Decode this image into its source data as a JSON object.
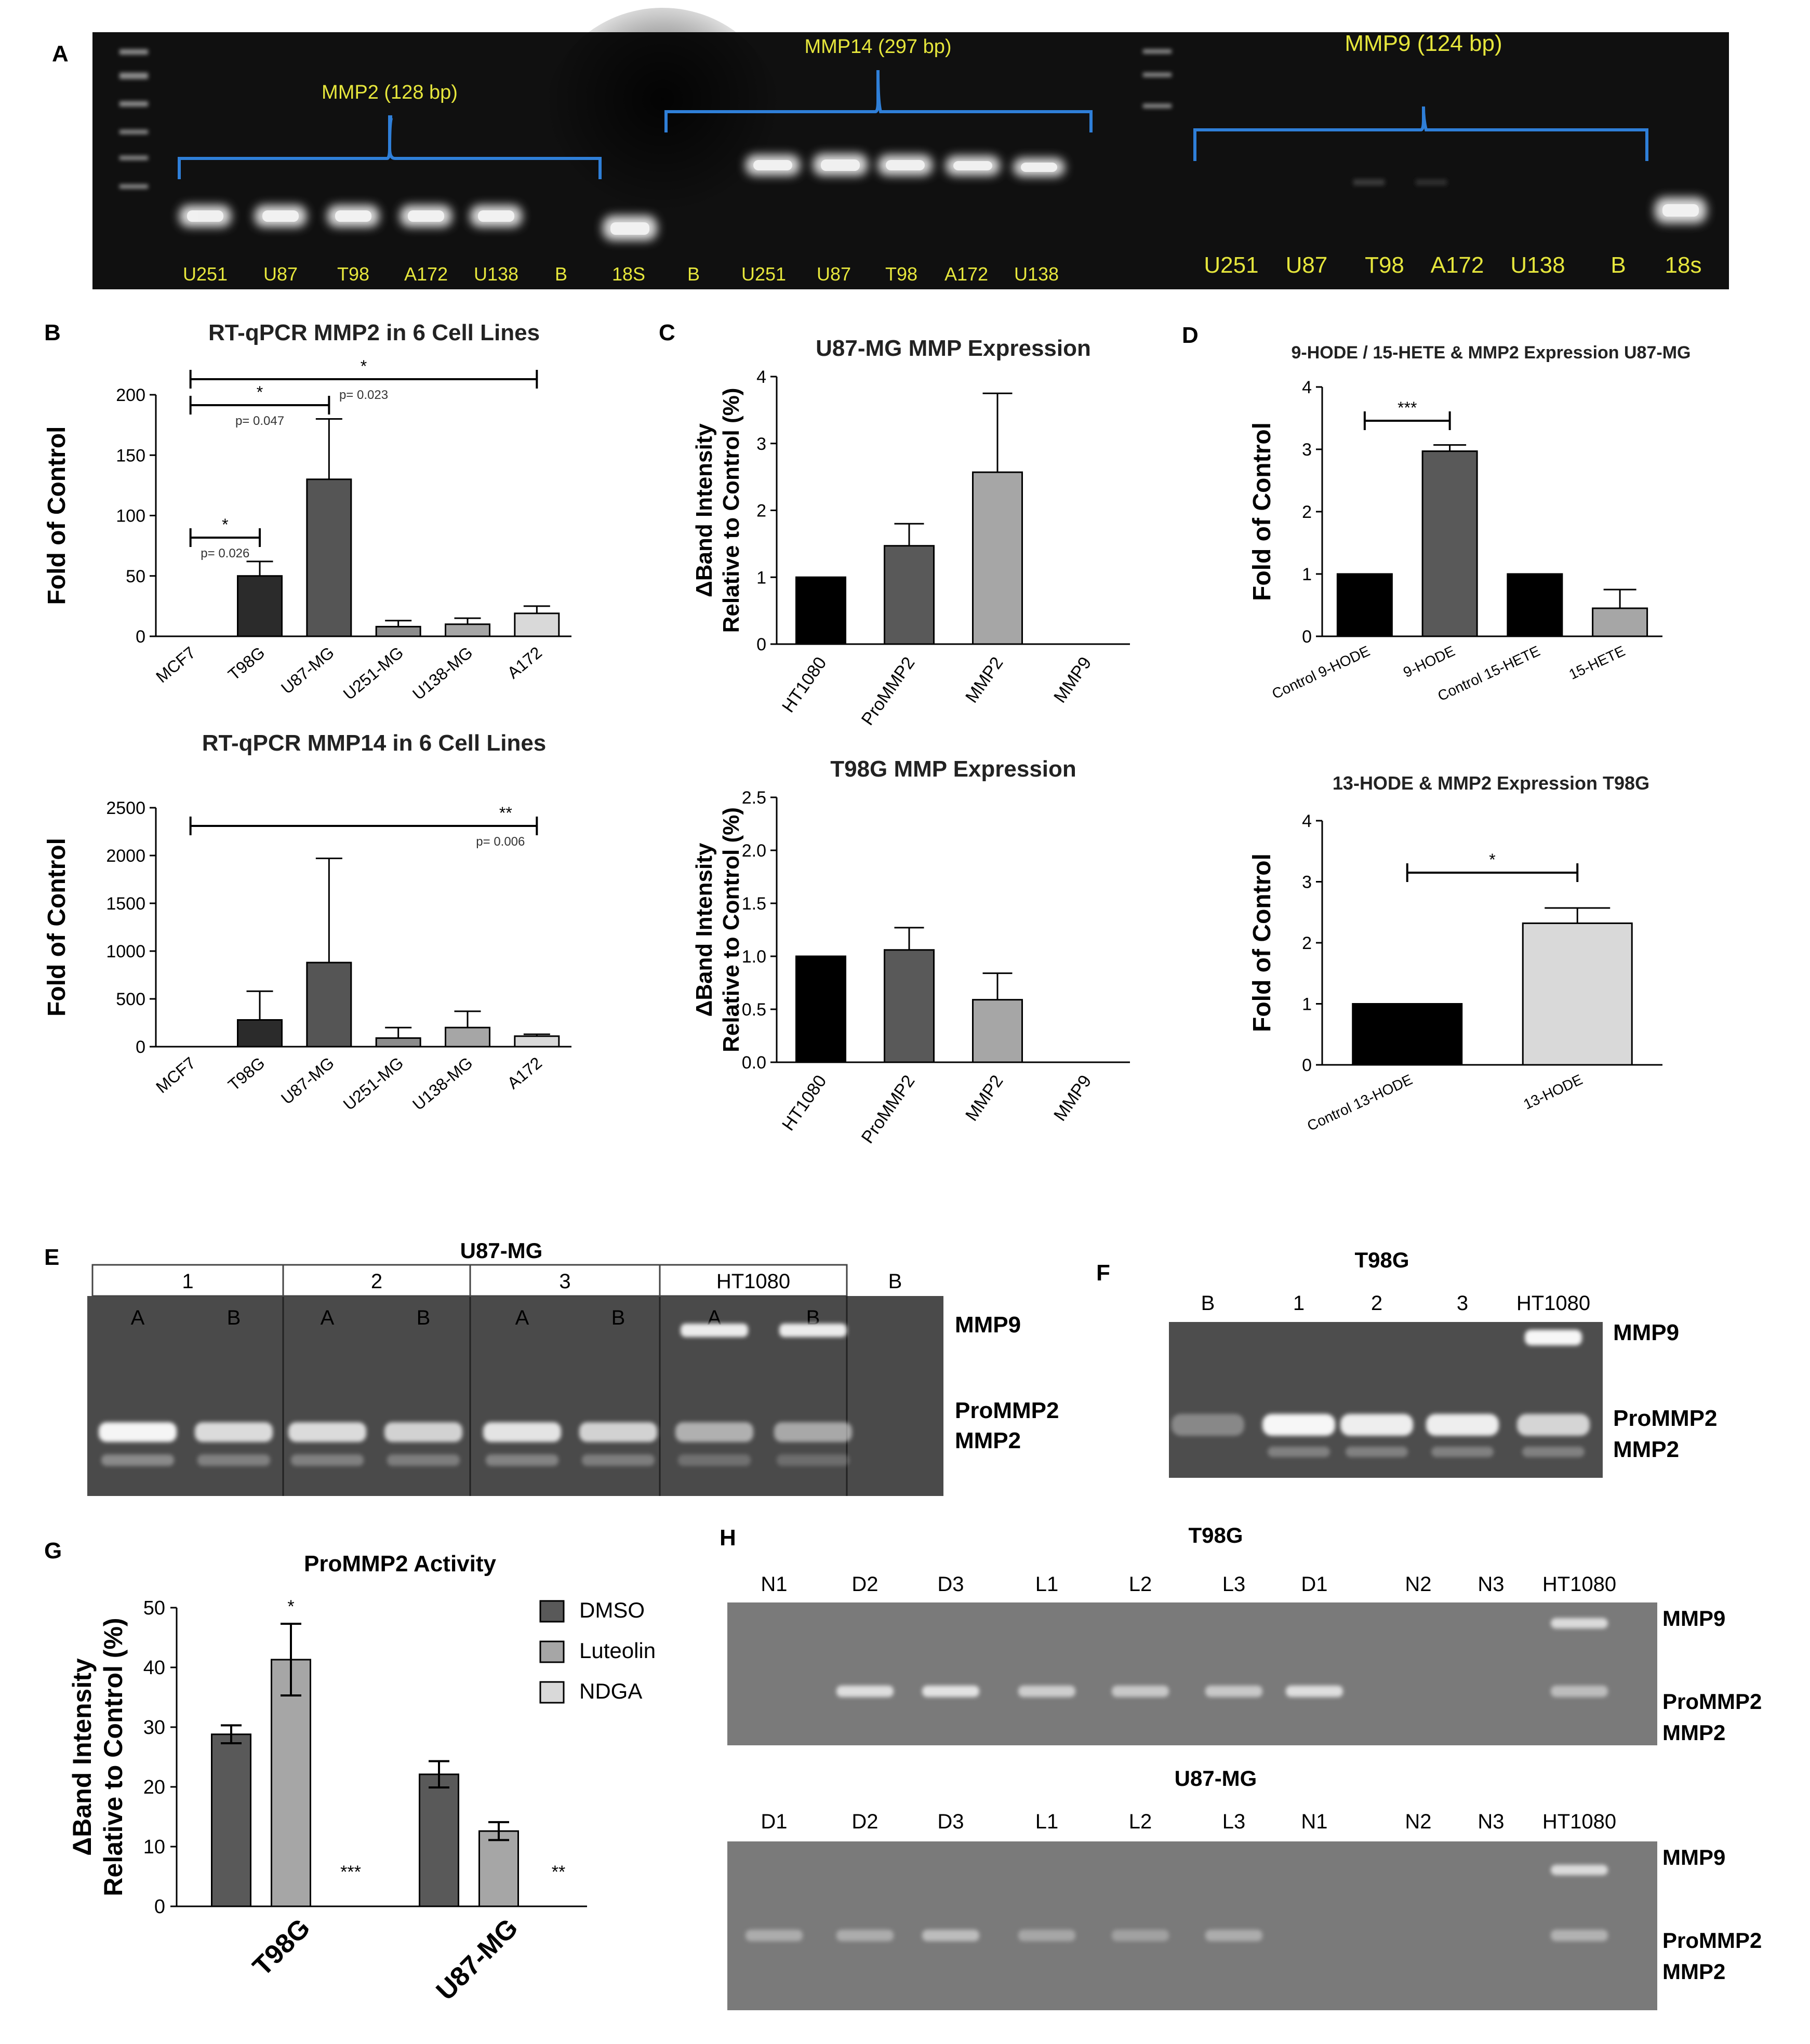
{
  "panel_letters": {
    "A": "A",
    "B": "B",
    "C": "C",
    "D": "D",
    "E": "E",
    "F": "F",
    "G": "G",
    "H": "H"
  },
  "gel_a": {
    "groups": [
      {
        "label": "MMP2 (128 bp)",
        "lanes": [
          "U251",
          "U87",
          "T98",
          "A172",
          "U138",
          "B",
          "18S"
        ]
      },
      {
        "label": "MMP14 (297 bp)",
        "lanes": [
          "B",
          "U251",
          "U87",
          "T98",
          "A172",
          "U138"
        ]
      },
      {
        "label": "MMP9 (124 bp)",
        "lanes": [
          "U251",
          "U87",
          "T98",
          "A172",
          "U138",
          "B",
          "18s"
        ]
      }
    ]
  },
  "gel_e": {
    "title": "U87-MG",
    "groups": [
      "1",
      "2",
      "3",
      "HT1080",
      "B"
    ],
    "sublanes": [
      "A",
      "B",
      "A",
      "B",
      "A",
      "B",
      "A",
      "B"
    ],
    "band_labels": [
      "MMP9",
      "ProMMP2",
      "MMP2"
    ]
  },
  "gel_f": {
    "title": "T98G",
    "lanes": [
      "B",
      "1",
      "2",
      "3",
      "HT1080"
    ],
    "band_labels": [
      "MMP9",
      "ProMMP2",
      "MMP2"
    ]
  },
  "gel_h": {
    "top_title": "T98G",
    "top_lanes": [
      "N1",
      "D2",
      "D3",
      "L1",
      "L2",
      "L3",
      "D1",
      "N2",
      "N3",
      "HT1080"
    ],
    "bottom_title": "U87-MG",
    "bottom_lanes": [
      "D1",
      "D2",
      "D3",
      "L1",
      "L2",
      "L3",
      "N1",
      "N2",
      "N3",
      "HT1080"
    ],
    "band_labels": [
      "MMP9",
      "ProMMP2",
      "MMP2"
    ]
  },
  "chart_data": [
    {
      "id": "B1",
      "type": "bar",
      "title": "RT-qPCR MMP2 in 6 Cell Lines",
      "ylabel": "Fold of Control",
      "xlabel": "",
      "categories": [
        "MCF7",
        "T98G",
        "U87-MG",
        "U251-MG",
        "U138-MG",
        "A172"
      ],
      "values": [
        0,
        50,
        130,
        8,
        10,
        19
      ],
      "errors": [
        0,
        12,
        50,
        5,
        5,
        6
      ],
      "colors": [
        "#1a1a1a",
        "#2b2b2b",
        "#555555",
        "#8c8c8c",
        "#a6a6a6",
        "#d9d9d9"
      ],
      "ylim": [
        0,
        200
      ],
      "yticks": [
        "0",
        "50",
        "100",
        "150",
        "200"
      ],
      "sig": [
        {
          "from": 0,
          "to": 1,
          "star": "*",
          "p": "p= 0.026"
        },
        {
          "from": 0,
          "to": 2,
          "star": "*",
          "p": "p= 0.047"
        },
        {
          "from": 0,
          "to": 5,
          "star": "*",
          "p": "p= 0.023"
        }
      ]
    },
    {
      "id": "B2",
      "type": "bar",
      "title": "RT-qPCR MMP14 in 6 Cell Lines",
      "ylabel": "Fold of Control",
      "xlabel": "",
      "categories": [
        "MCF7",
        "T98G",
        "U87-MG",
        "U251-MG",
        "U138-MG",
        "A172"
      ],
      "values": [
        0,
        280,
        880,
        90,
        200,
        110
      ],
      "errors": [
        0,
        300,
        1090,
        110,
        170,
        20
      ],
      "colors": [
        "#1a1a1a",
        "#2b2b2b",
        "#555555",
        "#8c8c8c",
        "#a6a6a6",
        "#d9d9d9"
      ],
      "ylim": [
        0,
        2500
      ],
      "yticks": [
        "0",
        "500",
        "1000",
        "1500",
        "2000",
        "2500"
      ],
      "sig": [
        {
          "from": 0,
          "to": 5,
          "star": "**",
          "p": "p= 0.006"
        }
      ]
    },
    {
      "id": "C1",
      "type": "bar",
      "title": "U87-MG MMP Expression",
      "ylabel": "ΔBand Intensity Relative to Control (%)",
      "xlabel": "",
      "categories": [
        "HT1080",
        "ProMMP2",
        "MMP2",
        "MMP9"
      ],
      "values": [
        1,
        1.47,
        2.57,
        0
      ],
      "errors": [
        0,
        0.33,
        1.18,
        0
      ],
      "colors": [
        "#000000",
        "#595959",
        "#a6a6a6",
        "#d9d9d9"
      ],
      "ylim": [
        0,
        4
      ],
      "yticks": [
        "0",
        "1",
        "2",
        "3",
        "4"
      ],
      "sig": []
    },
    {
      "id": "C2",
      "type": "bar",
      "title": "T98G MMP Expression",
      "ylabel": "ΔBand Intensity Relative to Control (%)",
      "xlabel": "",
      "categories": [
        "HT1080",
        "ProMMP2",
        "MMP2",
        "MMP9"
      ],
      "values": [
        1.0,
        1.06,
        0.59,
        0
      ],
      "errors": [
        0,
        0.21,
        0.25,
        0
      ],
      "colors": [
        "#000000",
        "#595959",
        "#a6a6a6",
        "#d9d9d9"
      ],
      "ylim": [
        0,
        2.5
      ],
      "yticks": [
        "0.0",
        "0.5",
        "1.0",
        "1.5",
        "2.0",
        "2.5"
      ],
      "sig": []
    },
    {
      "id": "D1",
      "type": "bar",
      "title": "9-HODE / 15-HETE & MMP2 Expression U87-MG",
      "ylabel": "Fold of Control",
      "xlabel": "",
      "categories": [
        "Control 9-HODE",
        "9-HODE",
        "Control 15-HETE",
        "15-HETE"
      ],
      "values": [
        1,
        2.97,
        1,
        0.45
      ],
      "errors": [
        0,
        0.1,
        0,
        0.3
      ],
      "colors": [
        "#000000",
        "#595959",
        "#000000",
        "#a6a6a6"
      ],
      "ylim": [
        0,
        4
      ],
      "yticks": [
        "0",
        "1",
        "2",
        "3",
        "4"
      ],
      "sig": [
        {
          "from": 0,
          "to": 1,
          "star": "***",
          "p": ""
        }
      ]
    },
    {
      "id": "D2",
      "type": "bar",
      "title": "13-HODE & MMP2 Expression T98G",
      "ylabel": "Fold of Control",
      "xlabel": "",
      "categories": [
        "Control 13-HODE",
        "13-HODE"
      ],
      "values": [
        1,
        2.32
      ],
      "errors": [
        0,
        0.25
      ],
      "colors": [
        "#000000",
        "#d9d9d9"
      ],
      "ylim": [
        0,
        4
      ],
      "yticks": [
        "0",
        "1",
        "2",
        "3",
        "4"
      ],
      "sig": [
        {
          "from": 0,
          "to": 1,
          "star": "*",
          "p": ""
        }
      ]
    },
    {
      "id": "G",
      "type": "bar",
      "title": "ProMMP2 Activity",
      "ylabel": "ΔBand Intensity Relative to Control (%)",
      "xlabel": "",
      "categories": [
        "T98G",
        "U87-MG"
      ],
      "series": [
        {
          "name": "DMSO",
          "values": [
            28.8,
            22.1
          ],
          "errors": [
            1.5,
            2.2
          ],
          "color": "#595959"
        },
        {
          "name": "Luteolin",
          "values": [
            41.3,
            12.6
          ],
          "errors": [
            6.0,
            1.5
          ],
          "color": "#a6a6a6"
        },
        {
          "name": "NDGA",
          "values": [
            0,
            0
          ],
          "errors": [
            0,
            0
          ],
          "color": "#d9d9d9"
        }
      ],
      "annotations": [
        {
          "cat": 0,
          "series": 1,
          "text": "*"
        },
        {
          "cat": 0,
          "series": 2,
          "text": "***"
        },
        {
          "cat": 1,
          "series": 2,
          "text": "**"
        }
      ],
      "ylim": [
        0,
        50
      ],
      "yticks": [
        "0",
        "10",
        "20",
        "30",
        "40",
        "50"
      ]
    }
  ]
}
